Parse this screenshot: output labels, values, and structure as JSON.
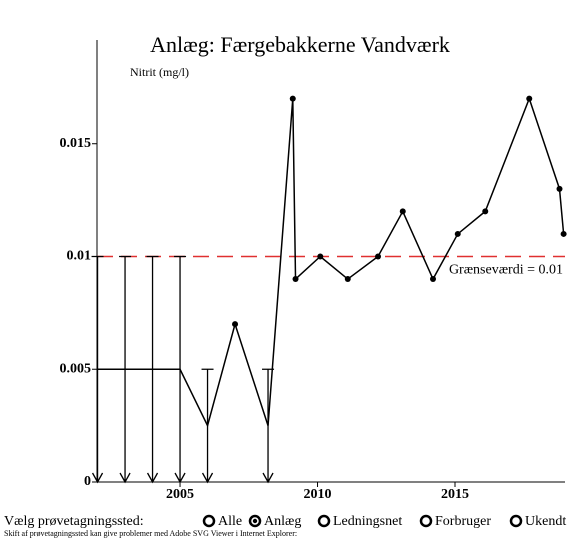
{
  "chart_data": {
    "type": "line",
    "title": "Anlæg: Færgebakkerne Vandværk",
    "y_label": "Nitrit (mg/l)",
    "x": [
      2002.0,
      2003.0,
      2004.0,
      2005.0,
      2006.0,
      2007.0,
      2008.2,
      2009.1,
      2009.2,
      2010.1,
      2011.1,
      2012.2,
      2013.1,
      2014.2,
      2015.1,
      2016.1,
      2017.7,
      2018.8,
      2018.95
    ],
    "series": [
      {
        "name": "Nitrit",
        "color": "#000000",
        "values": [
          0.005,
          0.005,
          0.005,
          0.005,
          0.0025,
          0.007,
          0.0025,
          0.017,
          0.009,
          0.01,
          0.009,
          0.01,
          0.012,
          0.009,
          0.011,
          0.012,
          0.017,
          0.013,
          0.011
        ],
        "detection_limits": [
          0.01,
          0.01,
          0.01,
          0.01,
          0.005,
          null,
          0.005,
          null,
          null,
          null,
          null,
          null,
          null,
          null,
          null,
          null,
          null,
          null,
          null
        ]
      }
    ],
    "threshold": {
      "value": 0.01,
      "label": "Grænseværdi = 0.01",
      "color": "#e03030"
    },
    "xlim": [
      2001.98,
      2019.0
    ],
    "xticks": [
      2005,
      2010,
      2015
    ],
    "ylim": [
      0,
      0.0196
    ],
    "yticks": [
      0,
      0.005,
      0.01,
      0.015
    ]
  },
  "controls": {
    "label": "Vælg prøvetagningssted:",
    "options": [
      "Alle",
      "Anlæg",
      "Ledningsnet",
      "Forbruger",
      "Ukendt"
    ],
    "selected_index": 1,
    "note": "Skift af prøvetagningssted kan give problemer med Adobe SVG Viewer i Internet Explorer:"
  }
}
